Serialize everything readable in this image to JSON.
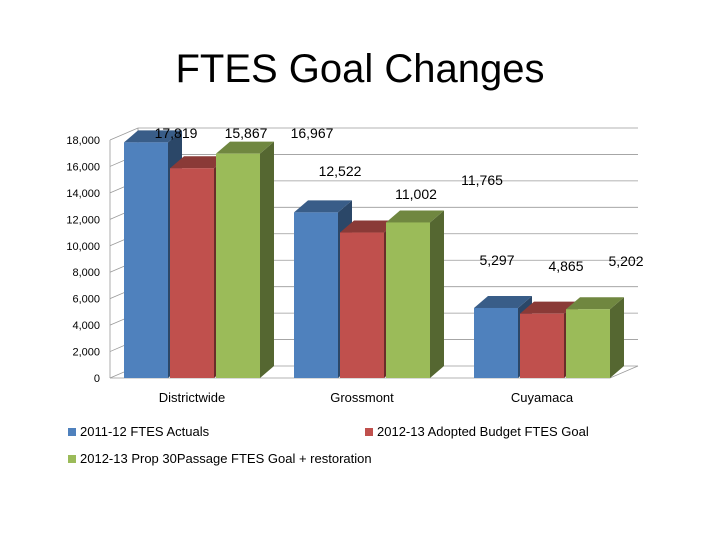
{
  "chart_data": {
    "type": "bar",
    "title": "FTES Goal Changes",
    "categories": [
      "Districtwide",
      "Grossmont",
      "Cuyamaca"
    ],
    "series": [
      {
        "name": "2011-12 FTES Actuals",
        "values": [
          17819,
          12522,
          5297
        ]
      },
      {
        "name": "2012-13 Adopted Budget FTES Goal",
        "values": [
          15867,
          11002,
          4865
        ]
      },
      {
        "name": "2012-13 Prop 30Passage FTES Goal + restoration",
        "values": [
          16967,
          11765,
          5202
        ]
      }
    ],
    "data_labels": [
      [
        "17,819",
        "12,522",
        "5,297"
      ],
      [
        "15,867",
        "11,002",
        "4,865"
      ],
      [
        "16,967",
        "11,765",
        "5,202"
      ]
    ],
    "ylim": [
      0,
      18000
    ],
    "y_ticks": [
      "0",
      "2,000",
      "4,000",
      "6,000",
      "8,000",
      "10,000",
      "12,000",
      "14,000",
      "16,000",
      "18,000"
    ],
    "grid": true,
    "legend_position": "bottom",
    "style": "3d-clustered-column",
    "colors": [
      "#4f81bd",
      "#c0504d",
      "#9bbb59"
    ]
  }
}
